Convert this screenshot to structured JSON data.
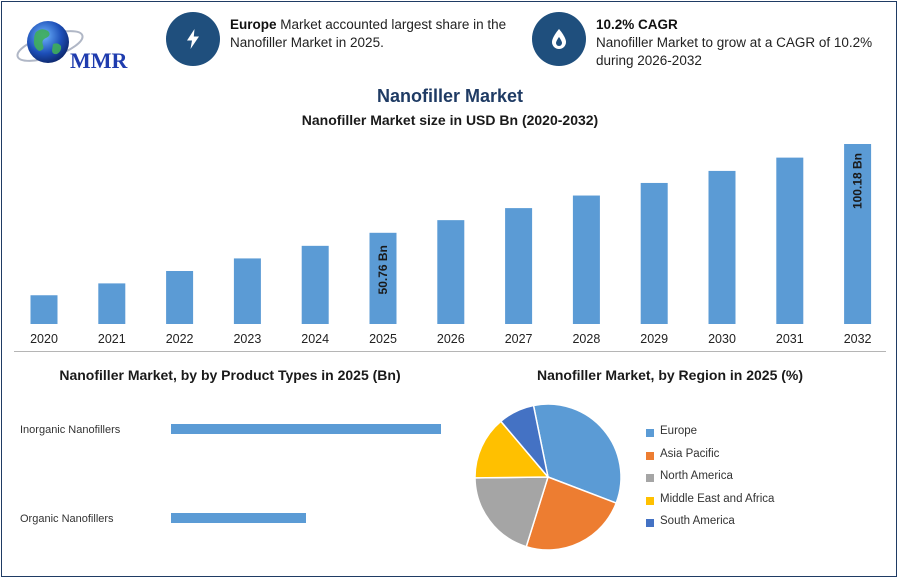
{
  "header": {
    "logo_text": "MMR",
    "info1": {
      "bold": "Europe",
      "text": " Market accounted largest share in the Nanofiller Market in 2025.",
      "icon": "lightning-icon"
    },
    "info2": {
      "bold": "10.2% CAGR",
      "text": "Nanofiller Market to grow at a CAGR of 10.2% during 2026-2032",
      "icon": "flame-drop-icon"
    }
  },
  "colors": {
    "accent": "#1f4f7d",
    "bar": "#5b9bd5",
    "title": "#1f3b64",
    "pie": [
      "#5b9bd5",
      "#ed7d31",
      "#a5a5a5",
      "#ffc000",
      "#4472c4"
    ]
  },
  "chart_data": [
    {
      "type": "bar",
      "title": "Nanofiller Market",
      "subtitle": "Nanofiller Market size in USD Bn (2020-2032)",
      "categories": [
        "2020",
        "2021",
        "2022",
        "2023",
        "2024",
        "2025",
        "2026",
        "2027",
        "2028",
        "2029",
        "2030",
        "2031",
        "2032"
      ],
      "values": [
        16,
        22.6,
        29.5,
        36.5,
        43.5,
        50.76,
        57.8,
        64.5,
        71.5,
        78.5,
        85.2,
        92.6,
        100.18
      ],
      "data_labels": [
        {
          "category": "2025",
          "text": "50.76 Bn"
        },
        {
          "category": "2032",
          "text": "100.18 Bn"
        }
      ],
      "ylim": [
        0,
        100.18
      ],
      "grid": false,
      "legend": "none"
    },
    {
      "type": "bar",
      "orientation": "horizontal",
      "title": "Nanofiller Market, by by Product Types in 2025 (Bn)",
      "categories": [
        "Inorganic Nanofillers",
        "Organic Nanofillers"
      ],
      "values": [
        36,
        18
      ],
      "xlim": [
        0,
        36
      ],
      "grid": false
    },
    {
      "type": "pie",
      "title": "Nanofiller Market, by Region in 2025 (%)",
      "labels": [
        "Europe",
        "Asia Pacific",
        "North America",
        "Middle East and Africa",
        "South America"
      ],
      "values": [
        34,
        24,
        20,
        14,
        8
      ],
      "legend": "right"
    }
  ]
}
